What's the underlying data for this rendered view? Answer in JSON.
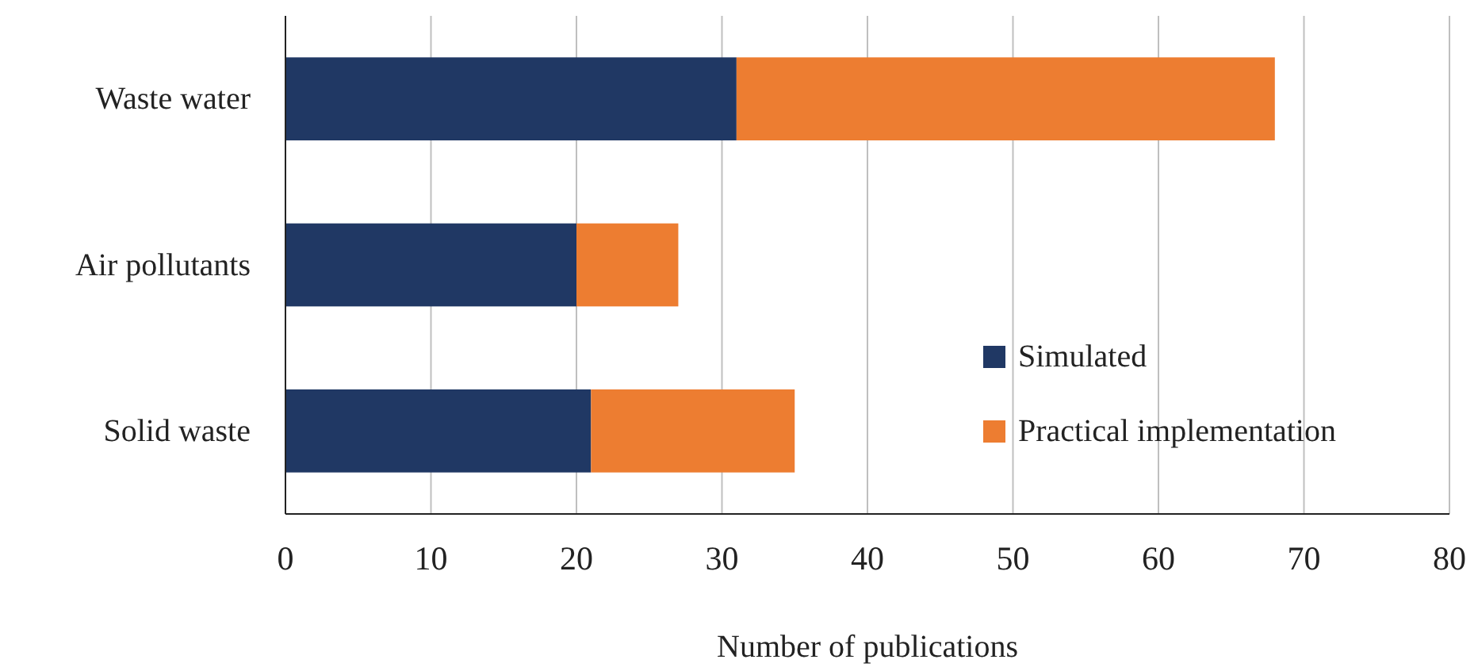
{
  "chart_data": {
    "type": "bar",
    "orientation": "horizontal",
    "stacked": true,
    "xlabel": "Number of publications",
    "categories": [
      "Waste water",
      "Air pollutants",
      "Solid waste"
    ],
    "series": [
      {
        "name": "Simulated",
        "color": "#203864",
        "values": [
          31,
          20,
          21
        ]
      },
      {
        "name": "Practical implementation",
        "color": "#ed7d31",
        "values": [
          37,
          7,
          14
        ]
      }
    ],
    "xlim": [
      0,
      80
    ],
    "xticks": [
      0,
      10,
      20,
      30,
      40,
      50,
      60,
      70,
      80
    ],
    "grid": "x",
    "legend": "bottom right"
  }
}
